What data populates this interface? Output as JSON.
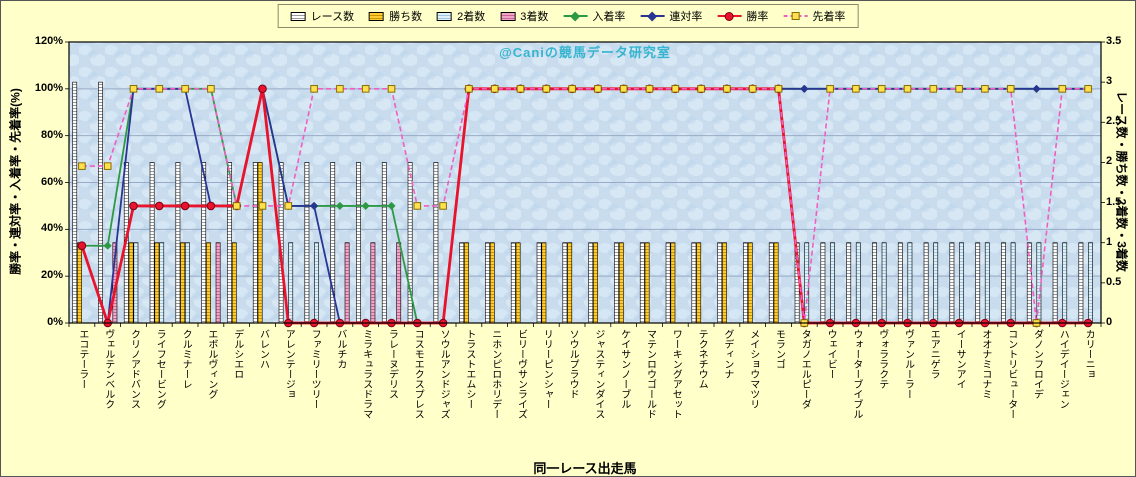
{
  "chart_data": {
    "type": "combo-bar-line",
    "watermark": "@Caniの競馬データ研究室",
    "xlabel": "同一レース出走馬",
    "legend_position": "top",
    "grid": true,
    "left_axis": {
      "label": "勝率・連対率・入着率・先着率(%)",
      "min": 0,
      "max": 120,
      "tick_step": 20,
      "tick_suffix": "%"
    },
    "right_axis": {
      "label": "レース数・勝ち数・2着数・3着数",
      "min": 0,
      "max": 3.5,
      "tick_step": 0.5
    },
    "categories": [
      "エコテーラー",
      "ヴェルテンベルク",
      "クリノアドバンス",
      "ライフセービング",
      "クルミナーレ",
      "エボルヴィング",
      "デルシエロ",
      "バレンハ",
      "アレンテージョ",
      "ファミリーツリー",
      "バルチカ",
      "ミラキュラスドラマ",
      "ラレーヌデリス",
      "コスモエクスプレス",
      "ソウルアンドジャズ",
      "トラストエムシー",
      "ニホンピロホリデー",
      "ビリーヴサンライズ",
      "リリーピンシャー",
      "ソウルプラウド",
      "ジャスティンダイス",
      "ケイサンノーブル",
      "マテンロウゴールド",
      "ワーキングアセット",
      "テクネチウム",
      "グディンナ",
      "メイショウマツリ",
      "モランゴ",
      "タガノエルピーダ",
      "ウェイビー",
      "ウォーターブイブル",
      "ヴォララクテ",
      "ヴァンルーラー",
      "エアニゲラ",
      "イーサンアイ",
      "オオナミコナミ",
      "コントリビューター",
      "ダノンフロイデ",
      "ハイデイージェン",
      "カリーニョ"
    ],
    "bar_series": [
      {
        "name": "レース数",
        "axis": "right",
        "color": "#FFFFFF",
        "stripe": "#9A9A9A",
        "values": [
          3,
          3,
          2,
          2,
          2,
          2,
          2,
          2,
          2,
          2,
          2,
          2,
          2,
          2,
          2,
          1,
          1,
          1,
          1,
          1,
          1,
          1,
          1,
          1,
          1,
          1,
          1,
          1,
          1,
          1,
          1,
          1,
          1,
          1,
          1,
          1,
          1,
          1,
          1,
          1
        ]
      },
      {
        "name": "勝ち数",
        "axis": "right",
        "color": "#FFCC33",
        "stripe": "#C89400",
        "values": [
          1,
          0,
          1,
          1,
          1,
          1,
          1,
          2,
          0,
          0,
          0,
          0,
          0,
          0,
          0,
          1,
          1,
          1,
          1,
          1,
          1,
          1,
          1,
          1,
          1,
          1,
          1,
          1,
          0,
          0,
          0,
          0,
          0,
          0,
          0,
          0,
          0,
          0,
          0,
          0
        ]
      },
      {
        "name": "2着数",
        "axis": "right",
        "color": "#DFF0F9",
        "stripe": "#9FC6DC",
        "values": [
          0,
          0,
          1,
          1,
          1,
          0,
          0,
          0,
          1,
          1,
          0,
          0,
          0,
          0,
          0,
          0,
          0,
          0,
          0,
          0,
          0,
          0,
          0,
          0,
          0,
          0,
          0,
          0,
          1,
          1,
          1,
          1,
          1,
          1,
          1,
          1,
          1,
          1,
          1,
          1
        ]
      },
      {
        "name": "3着数",
        "axis": "right",
        "color": "#F2A6C6",
        "stripe": "#CC6699",
        "values": [
          0,
          1,
          0,
          0,
          0,
          1,
          0,
          0,
          0,
          0,
          1,
          1,
          1,
          0,
          0,
          0,
          0,
          0,
          0,
          0,
          0,
          0,
          0,
          0,
          0,
          0,
          0,
          0,
          0,
          0,
          0,
          0,
          0,
          0,
          0,
          0,
          0,
          0,
          0,
          0
        ]
      }
    ],
    "line_series": [
      {
        "name": "入着率",
        "axis": "left",
        "color": "#2E9945",
        "marker": "diamond",
        "marker_color": "#2E9945",
        "dashed": false,
        "width": 1.8,
        "values": [
          33,
          33,
          100,
          100,
          100,
          100,
          50,
          100,
          50,
          50,
          50,
          50,
          50,
          0,
          0,
          100,
          100,
          100,
          100,
          100,
          100,
          100,
          100,
          100,
          100,
          100,
          100,
          100,
          100,
          100,
          100,
          100,
          100,
          100,
          100,
          100,
          100,
          100,
          100,
          100
        ]
      },
      {
        "name": "連対率",
        "axis": "left",
        "color": "#283593",
        "marker": "diamond",
        "marker_color": "#283593",
        "dashed": false,
        "width": 1.8,
        "values": [
          33,
          0,
          100,
          100,
          100,
          50,
          50,
          100,
          50,
          50,
          0,
          0,
          0,
          0,
          0,
          100,
          100,
          100,
          100,
          100,
          100,
          100,
          100,
          100,
          100,
          100,
          100,
          100,
          100,
          100,
          100,
          100,
          100,
          100,
          100,
          100,
          100,
          100,
          100,
          100
        ]
      },
      {
        "name": "勝率",
        "axis": "left",
        "color": "#E8132C",
        "marker": "circle",
        "marker_color": "#E8132C",
        "dashed": false,
        "width": 2.8,
        "values": [
          33,
          0,
          50,
          50,
          50,
          50,
          50,
          100,
          0,
          0,
          0,
          0,
          0,
          0,
          0,
          100,
          100,
          100,
          100,
          100,
          100,
          100,
          100,
          100,
          100,
          100,
          100,
          100,
          0,
          0,
          0,
          0,
          0,
          0,
          0,
          0,
          0,
          0,
          0,
          0
        ]
      },
      {
        "name": "先着率",
        "axis": "left",
        "color": "#F25EC0",
        "marker": "square",
        "marker_color": "#FFE14D",
        "dashed": true,
        "width": 1.6,
        "values": [
          67,
          67,
          100,
          100,
          100,
          100,
          50,
          50,
          50,
          100,
          100,
          100,
          100,
          50,
          50,
          100,
          100,
          100,
          100,
          100,
          100,
          100,
          100,
          100,
          100,
          100,
          100,
          100,
          0,
          100,
          100,
          100,
          100,
          100,
          100,
          100,
          100,
          0,
          100,
          100
        ]
      }
    ]
  }
}
